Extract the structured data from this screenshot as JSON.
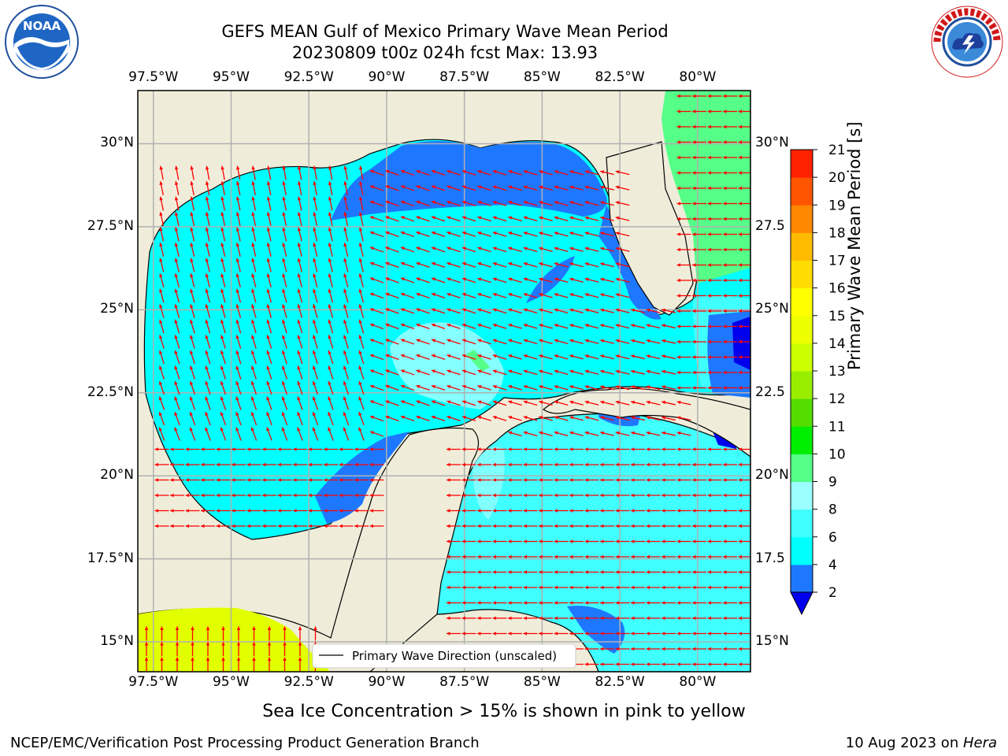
{
  "title_line1": "GEFS MEAN Gulf of Mexico Primary Wave Mean Period",
  "title_line2": "20230809 t00z 024h fcst   Max: 13.93",
  "map_extent": {
    "lon_min": -98.0,
    "lon_max": -78.3,
    "lat_min": 14.1,
    "lat_max": 31.6
  },
  "lon_ticks": [
    {
      "lon": -97.5,
      "label": "97.5°W"
    },
    {
      "lon": -95.0,
      "label": "95°W"
    },
    {
      "lon": -92.5,
      "label": "92.5°W"
    },
    {
      "lon": -90.0,
      "label": "90°W"
    },
    {
      "lon": -87.5,
      "label": "87.5°W"
    },
    {
      "lon": -85.0,
      "label": "85°W"
    },
    {
      "lon": -82.5,
      "label": "82.5°W"
    },
    {
      "lon": -80.0,
      "label": "80°W"
    }
  ],
  "lat_ticks_left": [
    {
      "lat": 30.0,
      "label": "30°N"
    },
    {
      "lat": 27.5,
      "label": "27.5°N"
    },
    {
      "lat": 25.0,
      "label": "25°N"
    },
    {
      "lat": 22.5,
      "label": "22.5°N"
    },
    {
      "lat": 20.0,
      "label": "20°N"
    },
    {
      "lat": 17.5,
      "label": "17.5°N"
    },
    {
      "lat": 15.0,
      "label": "15°N"
    }
  ],
  "lat_ticks_right": [
    {
      "lat": 30.0,
      "label": "30°N"
    },
    {
      "lat": 27.5,
      "label": "27.5"
    },
    {
      "lat": 25.0,
      "label": "25°N"
    },
    {
      "lat": 22.5,
      "label": "22.5"
    },
    {
      "lat": 20.0,
      "label": "20°N"
    },
    {
      "lat": 17.5,
      "label": "17.5"
    },
    {
      "lat": 15.0,
      "label": "15°N"
    }
  ],
  "legend_label": "Primary Wave Direction (unscaled)",
  "colorbar": {
    "label": "Primary Wave Mean Period [s]",
    "ticks": [
      "2",
      "4",
      "6",
      "8",
      "9",
      "10",
      "11",
      "12",
      "13",
      "14",
      "15",
      "16",
      "17",
      "18",
      "19",
      "20",
      "21"
    ],
    "colors": [
      "#1e78ff",
      "#00ffff",
      "#40ffff",
      "#9cffff",
      "#55ff88",
      "#00ee00",
      "#55dd00",
      "#99ee00",
      "#ccff00",
      "#eeff00",
      "#ffff00",
      "#ffdd00",
      "#ffbb00",
      "#ff8800",
      "#ff5500",
      "#ff2200"
    ],
    "under_color": "#0000ee"
  },
  "footer_note": "Sea Ice Concentration > 15% is shown in pink to yellow",
  "credit": "NCEP/EMC/Verification Post Processing Product Generation Branch",
  "date_text": "10 Aug 2023 on ",
  "date_host": "Hera",
  "logos": {
    "left": "NOAA",
    "right": "National Weather Service"
  },
  "colors": {
    "land": "#efedda",
    "arrow": "#ff0000",
    "grid": "#b0b0b0"
  }
}
